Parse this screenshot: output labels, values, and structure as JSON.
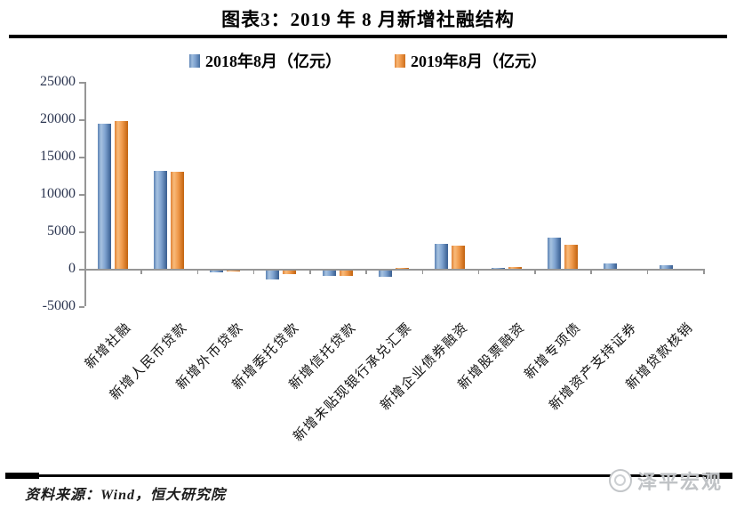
{
  "title": "图表3：2019 年 8 月新增社融结构",
  "footer": {
    "source": "资料来源：Wind，恒大研究院"
  },
  "watermark": {
    "label": "泽平宏观"
  },
  "colors": {
    "series_2018_blue": "#6f94c4",
    "series_2019_orange": "#ed9a4a",
    "axis_gray": "#969696",
    "rule_black": "#000000",
    "watermark_gray": "#c0c3c6"
  },
  "chart_data": {
    "type": "bar",
    "title": "图表3：2019 年 8 月新增社融结构",
    "unit": "亿元",
    "categories": [
      "新增社融",
      "新增人民币贷款",
      "新增外币贷款",
      "新增委托贷款",
      "新增信托贷款",
      "新增未贴现银行承兑汇票",
      "新增企业债券融资",
      "新增股票融资",
      "新增专项债",
      "新增资产支持证券",
      "新增贷款核销"
    ],
    "series": [
      {
        "name": "2018年8月（亿元）",
        "color": "#6f94c4",
        "values": [
          19420,
          13100,
          -230,
          -1210,
          -690,
          -780,
          3380,
          140,
          4110,
          700,
          450
        ]
      },
      {
        "name": "2019年8月（亿元）",
        "color": "#ed9a4a",
        "values": [
          19800,
          13000,
          -120,
          -510,
          -660,
          160,
          3040,
          260,
          3210,
          0,
          0
        ]
      }
    ],
    "ylim": [
      -5000,
      25000
    ],
    "yticks": [
      25000,
      20000,
      15000,
      10000,
      5000,
      0,
      -5000
    ],
    "xlabel": "",
    "ylabel": "",
    "grid": false,
    "legend_position": "top-center"
  }
}
